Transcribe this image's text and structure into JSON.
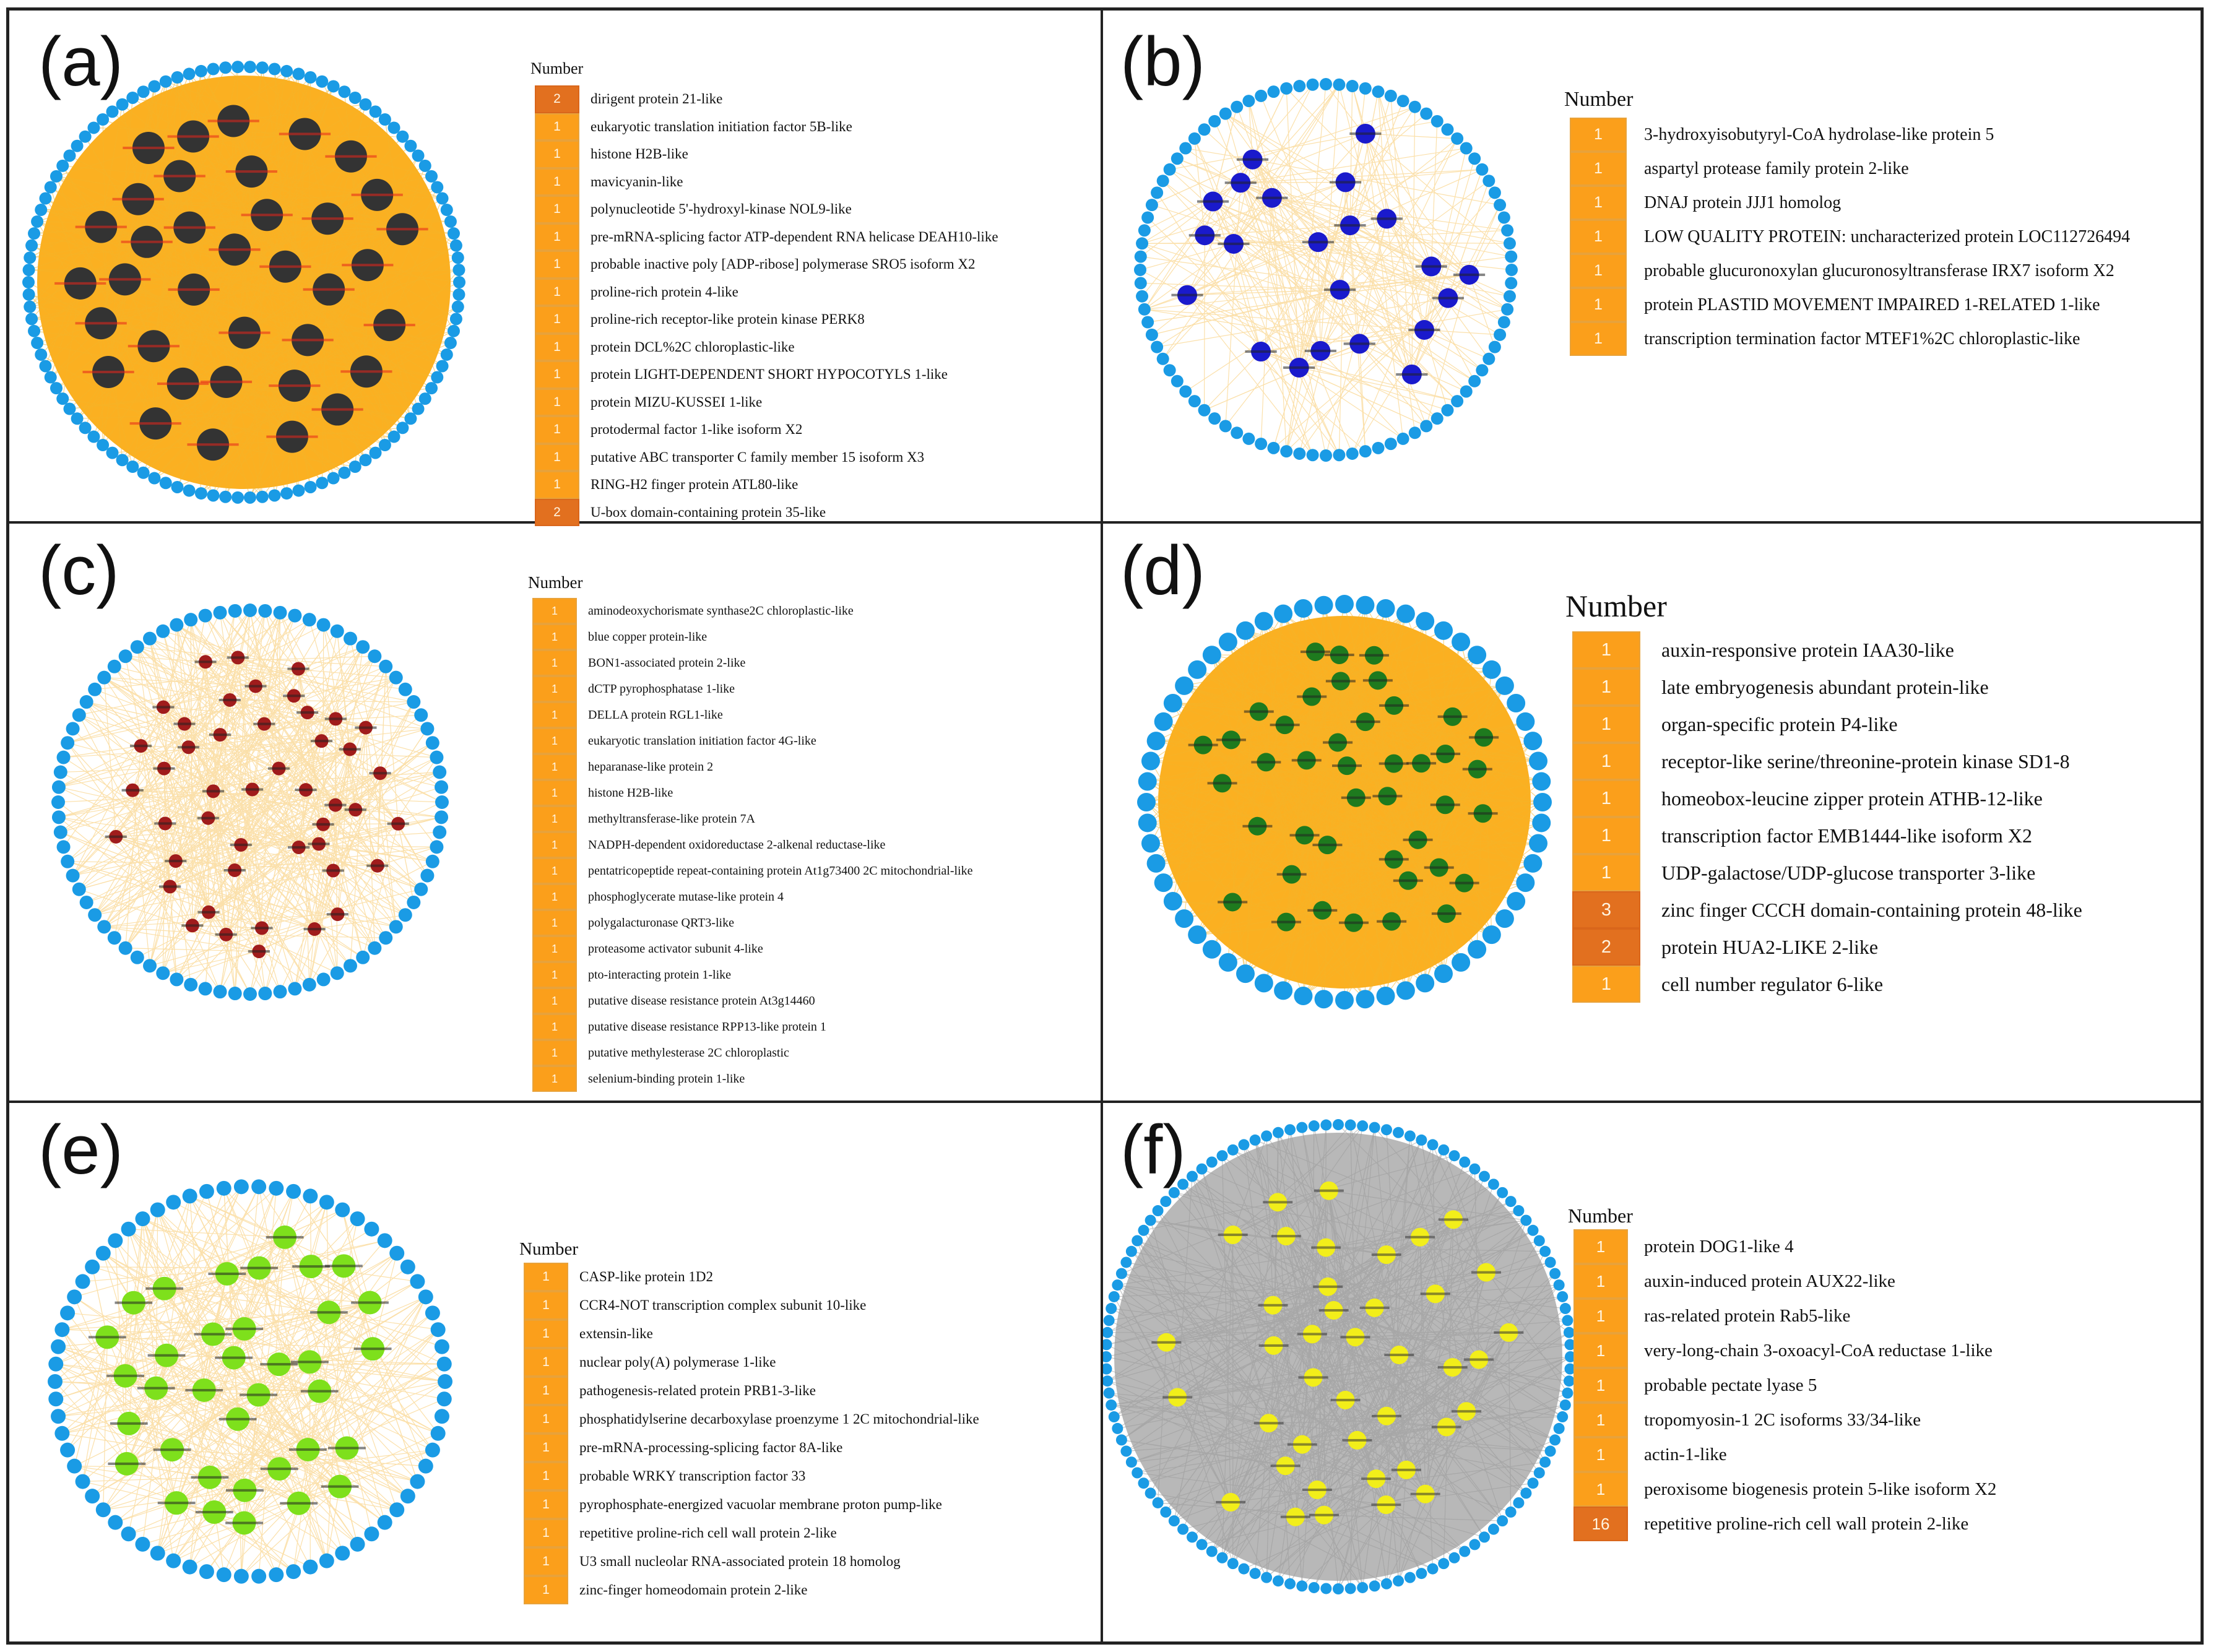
{
  "panels": [
    {
      "id": "a",
      "label": "(a)",
      "legend_title": "Number",
      "node_color": "#333333",
      "node_label_color": "#e5251b",
      "edge_color": "#f5b42a",
      "fill_color": "#fbb021",
      "ring_color": "#1a9be5",
      "items": [
        {
          "count": "2",
          "name": "dirigent protein 21-like"
        },
        {
          "count": "1",
          "name": "eukaryotic translation initiation factor 5B-like"
        },
        {
          "count": "1",
          "name": "histone H2B-like"
        },
        {
          "count": "1",
          "name": "mavicyanin-like"
        },
        {
          "count": "1",
          "name": "polynucleotide 5'-hydroxyl-kinase NOL9-like"
        },
        {
          "count": "1",
          "name": "pre-mRNA-splicing factor ATP-dependent RNA helicase DEAH10-like"
        },
        {
          "count": "1",
          "name": "probable inactive poly [ADP-ribose] polymerase SRO5 isoform X2"
        },
        {
          "count": "1",
          "name": "proline-rich protein 4-like"
        },
        {
          "count": "1",
          "name": "proline-rich receptor-like protein kinase PERK8"
        },
        {
          "count": "1",
          "name": "protein DCL%2C chloroplastic-like"
        },
        {
          "count": "1",
          "name": "protein LIGHT-DEPENDENT SHORT HYPOCOTYLS 1-like"
        },
        {
          "count": "1",
          "name": "protein MIZU-KUSSEI 1-like"
        },
        {
          "count": "1",
          "name": "protodermal factor 1-like isoform X2"
        },
        {
          "count": "1",
          "name": "putative ABC transporter C family member 15 isoform X3"
        },
        {
          "count": "1",
          "name": "RING-H2 finger protein ATL80-like"
        },
        {
          "count": "2",
          "name": "U-box domain-containing protein 35-like"
        }
      ]
    },
    {
      "id": "b",
      "label": "(b)",
      "legend_title": "Number",
      "node_color": "#1a1acc",
      "node_label_color": "#222222",
      "edge_color": "#f8c766",
      "fill_color": "#ffffff",
      "ring_color": "#1a9be5",
      "items": [
        {
          "count": "1",
          "name": "3-hydroxyisobutyryl-CoA hydrolase-like protein 5"
        },
        {
          "count": "1",
          "name": "aspartyl protease family protein 2-like"
        },
        {
          "count": "1",
          "name": "DNAJ protein JJJ1 homolog"
        },
        {
          "count": "1",
          "name": "LOW QUALITY PROTEIN: uncharacterized protein LOC112726494"
        },
        {
          "count": "1",
          "name": "probable glucuronoxylan glucuronosyltransferase IRX7 isoform X2"
        },
        {
          "count": "1",
          "name": "protein PLASTID MOVEMENT IMPAIRED 1-RELATED 1-like"
        },
        {
          "count": "1",
          "name": "transcription termination factor MTEF1%2C chloroplastic-like"
        }
      ]
    },
    {
      "id": "c",
      "label": "(c)",
      "legend_title": "Number",
      "node_color": "#a01c1c",
      "node_label_color": "#222222",
      "edge_color": "#f8c766",
      "fill_color": "#ffffff",
      "ring_color": "#1a9be5",
      "items": [
        {
          "count": "1",
          "name": "aminodeoxychorismate synthase2C chloroplastic-like"
        },
        {
          "count": "1",
          "name": "blue copper protein-like"
        },
        {
          "count": "1",
          "name": "BON1-associated protein 2-like"
        },
        {
          "count": "1",
          "name": "dCTP pyrophosphatase 1-like"
        },
        {
          "count": "1",
          "name": "DELLA protein RGL1-like"
        },
        {
          "count": "1",
          "name": "eukaryotic translation initiation factor 4G-like"
        },
        {
          "count": "1",
          "name": "heparanase-like protein 2"
        },
        {
          "count": "1",
          "name": "histone H2B-like"
        },
        {
          "count": "1",
          "name": "methyltransferase-like protein 7A"
        },
        {
          "count": "1",
          "name": "NADPH-dependent oxidoreductase 2-alkenal reductase-like"
        },
        {
          "count": "1",
          "name": "pentatricopeptide repeat-containing protein At1g73400 2C mitochondrial-like"
        },
        {
          "count": "1",
          "name": "phosphoglycerate mutase-like protein 4"
        },
        {
          "count": "1",
          "name": "polygalacturonase QRT3-like"
        },
        {
          "count": "1",
          "name": "proteasome activator subunit 4-like"
        },
        {
          "count": "1",
          "name": "pto-interacting protein 1-like"
        },
        {
          "count": "1",
          "name": "putative disease resistance protein At3g14460"
        },
        {
          "count": "1",
          "name": "putative disease resistance RPP13-like protein 1"
        },
        {
          "count": "1",
          "name": "putative methylesterase 2C chloroplastic"
        },
        {
          "count": "1",
          "name": "selenium-binding protein 1-like"
        }
      ]
    },
    {
      "id": "d",
      "label": "(d)",
      "legend_title": "Number",
      "node_color": "#1e7a1e",
      "node_label_color": "#222222",
      "edge_color": "#f5b42a",
      "fill_color": "#fbb021",
      "ring_color": "#1a9be5",
      "items": [
        {
          "count": "1",
          "name": "auxin-responsive protein IAA30-like"
        },
        {
          "count": "1",
          "name": "late embryogenesis abundant protein-like"
        },
        {
          "count": "1",
          "name": "organ-specific protein P4-like"
        },
        {
          "count": "1",
          "name": "receptor-like serine/threonine-protein kinase SD1-8"
        },
        {
          "count": "1",
          "name": "homeobox-leucine zipper protein ATHB-12-like"
        },
        {
          "count": "1",
          "name": "transcription factor EMB1444-like isoform X2"
        },
        {
          "count": "1",
          "name": "UDP-galactose/UDP-glucose transporter 3-like"
        },
        {
          "count": "3",
          "name": "zinc finger CCCH domain-containing protein 48-like"
        },
        {
          "count": "2",
          "name": "protein HUA2-LIKE 2-like"
        },
        {
          "count": "1",
          "name": "cell number regulator 6-like"
        }
      ]
    },
    {
      "id": "e",
      "label": "(e)",
      "legend_title": "Number",
      "node_color": "#7ee01c",
      "node_label_color": "#222222",
      "edge_color": "#f8c766",
      "fill_color": "#ffffff",
      "ring_color": "#1a9be5",
      "items": [
        {
          "count": "1",
          "name": "CASP-like protein 1D2"
        },
        {
          "count": "1",
          "name": "CCR4-NOT transcription complex subunit 10-like"
        },
        {
          "count": "1",
          "name": "extensin-like"
        },
        {
          "count": "1",
          "name": "nuclear poly(A) polymerase 1-like"
        },
        {
          "count": "1",
          "name": "pathogenesis-related protein PRB1-3-like"
        },
        {
          "count": "1",
          "name": "phosphatidylserine decarboxylase proenzyme 1 2C mitochondrial-like"
        },
        {
          "count": "1",
          "name": "pre-mRNA-processing-splicing factor 8A-like"
        },
        {
          "count": "1",
          "name": "probable WRKY transcription factor 33"
        },
        {
          "count": "1",
          "name": "pyrophosphate-energized vacuolar membrane proton pump-like"
        },
        {
          "count": "1",
          "name": "repetitive proline-rich cell wall protein 2-like"
        },
        {
          "count": "1",
          "name": "U3 small nucleolar RNA-associated protein 18 homolog"
        },
        {
          "count": "1",
          "name": "zinc-finger homeodomain protein 2-like"
        }
      ]
    },
    {
      "id": "f",
      "label": "(f)",
      "legend_title": "Number",
      "node_color": "#f2ee1a",
      "node_label_color": "#333333",
      "edge_color": "#9a9a9a",
      "fill_color": "#b8b8b8",
      "ring_color": "#1a9be5",
      "items": [
        {
          "count": "1",
          "name": "protein DOG1-like 4"
        },
        {
          "count": "1",
          "name": "auxin-induced protein AUX22-like"
        },
        {
          "count": "1",
          "name": "ras-related protein Rab5-like"
        },
        {
          "count": "1",
          "name": "very-long-chain 3-oxoacyl-CoA reductase 1-like"
        },
        {
          "count": "1",
          "name": "probable pectate lyase 5"
        },
        {
          "count": "1",
          "name": "tropomyosin-1 2C isoforms 33/34-like"
        },
        {
          "count": "1",
          "name": "actin-1-like"
        },
        {
          "count": "1",
          "name": "peroxisome biogenesis protein 5-like isoform X2"
        },
        {
          "count": "16",
          "name": "repetitive proline-rich cell wall protein 2-like"
        }
      ]
    }
  ]
}
